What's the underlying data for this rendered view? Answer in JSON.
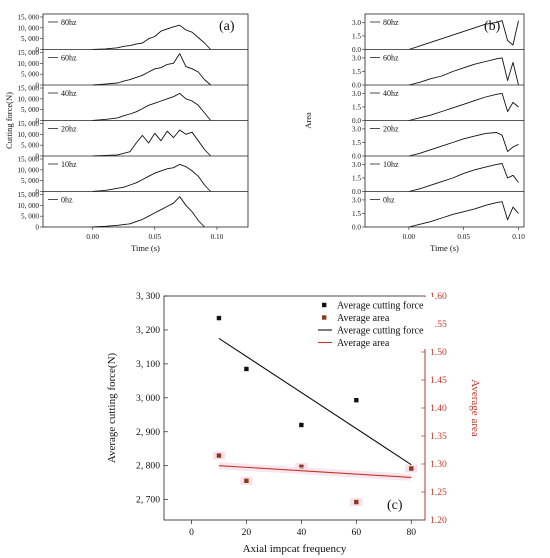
{
  "figure": {
    "panel_labels": [
      "(a)",
      "(b)",
      "(c)"
    ]
  },
  "chart_data": [
    {
      "type": "line",
      "panel": "(a)",
      "xlabel": "Time (s)",
      "ylabel": "Cutting force(N)",
      "xlim": [
        -0.04,
        0.125
      ],
      "ylim": [
        0,
        15000
      ],
      "x_ticks": [
        0.0,
        0.05,
        0.1
      ],
      "x_tick_labels": [
        "0.00",
        "0.05",
        "0.10"
      ],
      "y_ticks": [
        0,
        5000,
        10000,
        15000
      ],
      "y_tick_labels": [
        "0",
        "5, 000",
        "10, 000",
        "15, 000"
      ],
      "series": [
        {
          "name": "80hz",
          "x": [
            0,
            0.01,
            0.02,
            0.025,
            0.03,
            0.035,
            0.04,
            0.045,
            0.05,
            0.055,
            0.06,
            0.065,
            0.07,
            0.075,
            0.08,
            0.085,
            0.09,
            0.095
          ],
          "y": [
            0,
            300,
            800,
            1500,
            1800,
            2500,
            3000,
            5000,
            6000,
            8500,
            9500,
            10500,
            11200,
            9000,
            8000,
            5500,
            3000,
            0
          ]
        },
        {
          "name": "60hz",
          "x": [
            0,
            0.01,
            0.02,
            0.025,
            0.03,
            0.035,
            0.04,
            0.045,
            0.05,
            0.055,
            0.06,
            0.065,
            0.07,
            0.075,
            0.08,
            0.085,
            0.09,
            0.095
          ],
          "y": [
            0,
            400,
            900,
            1800,
            2500,
            3500,
            4500,
            6000,
            7500,
            8000,
            9500,
            10000,
            14500,
            8500,
            7500,
            6000,
            2500,
            0
          ]
        },
        {
          "name": "40hz",
          "x": [
            0,
            0.01,
            0.02,
            0.025,
            0.03,
            0.035,
            0.04,
            0.045,
            0.05,
            0.055,
            0.06,
            0.065,
            0.07,
            0.075,
            0.08,
            0.085,
            0.09,
            0.095
          ],
          "y": [
            0,
            500,
            1200,
            2200,
            3000,
            4000,
            5500,
            7000,
            8000,
            9000,
            10000,
            11000,
            12500,
            10000,
            9000,
            7000,
            3500,
            0
          ]
        },
        {
          "name": "20hz",
          "x": [
            0,
            0.02,
            0.03,
            0.035,
            0.04,
            0.045,
            0.05,
            0.055,
            0.06,
            0.065,
            0.07,
            0.075,
            0.08,
            0.085,
            0.09,
            0.095
          ],
          "y": [
            0,
            500,
            2000,
            6000,
            9500,
            6000,
            10500,
            7000,
            11500,
            8500,
            12000,
            10000,
            11000,
            7000,
            3000,
            0
          ]
        },
        {
          "name": "10hz",
          "x": [
            0,
            0.01,
            0.02,
            0.025,
            0.03,
            0.035,
            0.04,
            0.045,
            0.05,
            0.055,
            0.06,
            0.065,
            0.07,
            0.075,
            0.08,
            0.085,
            0.09,
            0.095
          ],
          "y": [
            0,
            500,
            1500,
            2000,
            3000,
            4000,
            5500,
            7000,
            8500,
            9500,
            10500,
            11000,
            12500,
            11500,
            9500,
            7000,
            3000,
            0
          ]
        },
        {
          "name": "0hz",
          "x": [
            0,
            0.01,
            0.02,
            0.03,
            0.035,
            0.04,
            0.045,
            0.05,
            0.055,
            0.06,
            0.065,
            0.07,
            0.075,
            0.08,
            0.085,
            0.09
          ],
          "y": [
            0,
            300,
            800,
            1500,
            2500,
            3500,
            5000,
            6500,
            8000,
            9500,
            11000,
            14000,
            10000,
            7000,
            3000,
            0
          ]
        }
      ]
    },
    {
      "type": "line",
      "panel": "(b)",
      "xlabel": "Time (s)",
      "ylabel": "Area",
      "xlim": [
        -0.04,
        0.105
      ],
      "ylim": [
        0,
        3.6
      ],
      "x_ticks": [
        0.0,
        0.05,
        0.1
      ],
      "x_tick_labels": [
        "0.00",
        "0.05",
        "0.10"
      ],
      "y_ticks": [
        0,
        1.5,
        3.0
      ],
      "y_tick_labels": [
        "0.0",
        "1.5",
        "3.0"
      ],
      "series": [
        {
          "name": "80hz",
          "x": [
            0,
            0.01,
            0.02,
            0.03,
            0.04,
            0.05,
            0.06,
            0.07,
            0.08,
            0.085,
            0.09,
            0.095,
            0.1
          ],
          "y": [
            0,
            0.4,
            0.8,
            1.2,
            1.6,
            2.0,
            2.4,
            2.8,
            3.0,
            3.2,
            1.0,
            0.5,
            3.2
          ]
        },
        {
          "name": "60hz",
          "x": [
            0,
            0.01,
            0.02,
            0.03,
            0.04,
            0.05,
            0.06,
            0.07,
            0.08,
            0.085,
            0.09,
            0.095,
            0.1
          ],
          "y": [
            0,
            0.3,
            0.7,
            1.0,
            1.5,
            1.9,
            2.3,
            2.6,
            2.9,
            3.0,
            0.5,
            2.5,
            0.0
          ]
        },
        {
          "name": "40hz",
          "x": [
            0,
            0.01,
            0.02,
            0.03,
            0.04,
            0.05,
            0.06,
            0.07,
            0.08,
            0.085,
            0.09,
            0.095,
            0.1
          ],
          "y": [
            0,
            0.3,
            0.6,
            1.0,
            1.4,
            1.8,
            2.2,
            2.6,
            2.9,
            3.0,
            1.0,
            2.0,
            1.5
          ]
        },
        {
          "name": "20hz",
          "x": [
            0,
            0.01,
            0.02,
            0.03,
            0.04,
            0.05,
            0.06,
            0.07,
            0.08,
            0.085,
            0.09,
            0.095,
            0.1
          ],
          "y": [
            0,
            0.3,
            0.7,
            1.1,
            1.5,
            1.9,
            2.2,
            2.5,
            2.6,
            2.3,
            0.5,
            1.0,
            1.3
          ]
        },
        {
          "name": "10hz",
          "x": [
            0,
            0.01,
            0.02,
            0.03,
            0.04,
            0.05,
            0.06,
            0.07,
            0.08,
            0.085,
            0.09,
            0.095,
            0.1
          ],
          "y": [
            0,
            0.3,
            0.7,
            1.1,
            1.5,
            2.0,
            2.4,
            2.7,
            3.0,
            3.1,
            1.5,
            1.8,
            1.0
          ]
        },
        {
          "name": "0hz",
          "x": [
            0,
            0.01,
            0.02,
            0.03,
            0.04,
            0.05,
            0.06,
            0.07,
            0.08,
            0.085,
            0.09,
            0.095,
            0.1
          ],
          "y": [
            0,
            0.3,
            0.6,
            1.0,
            1.4,
            1.7,
            2.0,
            2.4,
            2.7,
            2.8,
            0.8,
            2.2,
            1.5
          ]
        }
      ]
    },
    {
      "type": "scatter",
      "panel": "(c)",
      "xlabel": "Axial impcat frequency",
      "ylabel": "Average cutting force(N)",
      "ylabel_right": "Average area",
      "xlim": [
        -10,
        85
      ],
      "ylim": [
        2640,
        3300
      ],
      "ylim_right": [
        1.2,
        1.6
      ],
      "x_ticks": [
        0,
        20,
        40,
        60,
        80
      ],
      "x_tick_labels": [
        "0",
        "20",
        "40",
        "60",
        "80"
      ],
      "y_ticks": [
        2700,
        2800,
        2900,
        3000,
        3100,
        3200,
        3300
      ],
      "y_tick_labels": [
        "2, 700",
        "2, 800",
        "2, 900",
        "3, 000",
        "3, 100",
        "3, 200",
        "3, 300"
      ],
      "y_right_ticks": [
        1.2,
        1.25,
        1.3,
        1.35,
        1.4,
        1.45,
        1.5,
        1.55,
        1.6
      ],
      "y_right_tick_labels": [
        "1.20",
        "1.25",
        "1.30",
        "1.35",
        "1.40",
        "1.45",
        "1.50",
        "1.55",
        "1.60"
      ],
      "x": [
        10,
        20,
        40,
        60,
        80
      ],
      "series": [
        {
          "name": "Average cutting force",
          "kind": "points",
          "axis": "left",
          "color": "#111111",
          "values": [
            3235,
            3085,
            2920,
            2993,
            2790
          ]
        },
        {
          "name": "Average area",
          "kind": "points",
          "axis": "right",
          "color": "#8b3a1f",
          "values": [
            1.315,
            1.27,
            1.295,
            1.232,
            1.292
          ]
        },
        {
          "name": "Average cutting force",
          "kind": "line",
          "axis": "left",
          "color": "#111111",
          "x": [
            10,
            80
          ],
          "values": [
            3175,
            2803
          ]
        },
        {
          "name": "Average area",
          "kind": "line",
          "axis": "right",
          "color": "#c0392b",
          "x": [
            10,
            80
          ],
          "values": [
            1.297,
            1.276
          ]
        }
      ],
      "legend_placement": "top-right"
    }
  ]
}
